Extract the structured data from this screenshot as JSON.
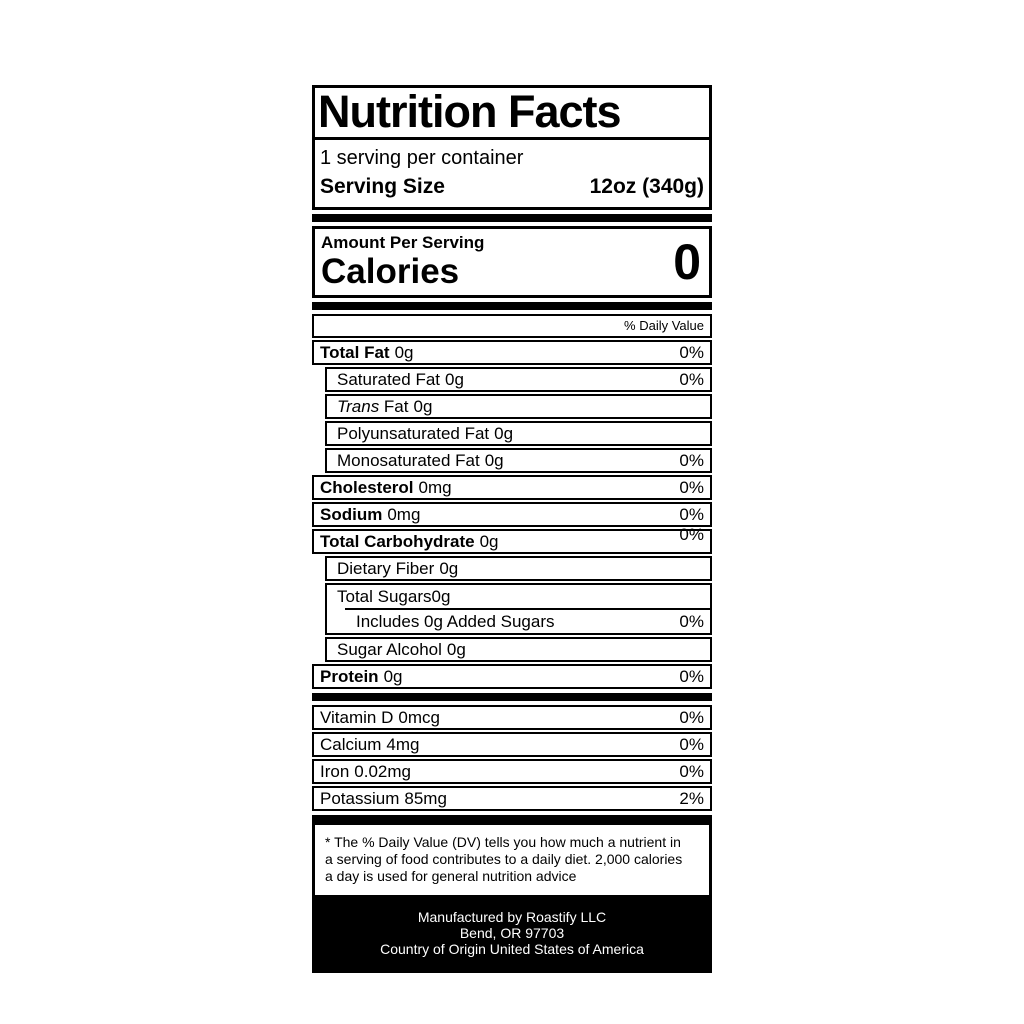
{
  "colors": {
    "ink": "#000000",
    "paper": "#ffffff"
  },
  "label": {
    "title": "Nutrition Facts",
    "servings_per_container": "1 serving per container",
    "serving_size": {
      "label": "Serving Size",
      "value": "12oz (340g)"
    },
    "amount_per_serving": "Amount Per Serving",
    "calories": {
      "label": "Calories",
      "value": "0"
    },
    "daily_value_header": "% Daily Value",
    "nutrients": [
      {
        "name": "Total Fat",
        "amount": "0g",
        "percent": "0%",
        "bold": true,
        "indent": 0
      },
      {
        "name": "Saturated Fat",
        "amount": "0g",
        "percent": "0%",
        "bold": false,
        "indent": 1
      },
      {
        "name_italic": "Trans",
        "name": "Fat",
        "amount": "0g",
        "percent": "",
        "bold": false,
        "indent": 1
      },
      {
        "name": "Polyunsaturated Fat",
        "amount": "0g",
        "percent": "",
        "bold": false,
        "indent": 1
      },
      {
        "name": "Monosaturated Fat",
        "amount": "0g",
        "percent": "0%",
        "bold": false,
        "indent": 1
      },
      {
        "name": "Cholesterol",
        "amount": "0mg",
        "percent": "0%",
        "bold": true,
        "indent": 0
      },
      {
        "name": "Sodium",
        "amount": "0mg",
        "percent": "0%",
        "bold": true,
        "indent": 0
      },
      {
        "name": "Total Carbohydrate",
        "amount": "0g",
        "percent": "0%",
        "bold": true,
        "indent": 0,
        "percent_raised": true
      },
      {
        "name": "Dietary Fiber",
        "amount": "0g",
        "percent": "",
        "bold": false,
        "indent": 1
      },
      {
        "type": "sugars_group",
        "line1": {
          "name": "Total Sugars",
          "amount": "0g"
        },
        "line2": {
          "name": "Includes 0g Added Sugars",
          "percent": "0%"
        }
      },
      {
        "name": "Sugar Alcohol",
        "amount": "0g",
        "percent": "",
        "bold": false,
        "indent": 1
      },
      {
        "name": "Protein",
        "amount": "0g",
        "percent": "0%",
        "bold": true,
        "indent": 0
      }
    ],
    "vitamins": [
      {
        "name": "Vitamin D",
        "amount": "0mcg",
        "percent": "0%"
      },
      {
        "name": "Calcium",
        "amount": "4mg",
        "percent": "0%"
      },
      {
        "name": "Iron",
        "amount": "0.02mg",
        "percent": "0%"
      },
      {
        "name": "Potassium",
        "amount": "85mg",
        "percent": "2%"
      }
    ],
    "footnote_lines": [
      "* The % Daily Value (DV) tells you how much a nutrient in",
      "a serving of food contributes to a daily diet. 2,000 calories",
      "a day is used for general nutrition advice"
    ],
    "footer_lines": [
      "Manufactured by Roastify LLC",
      "Bend, OR 97703",
      "Country of Origin United States of America"
    ]
  }
}
